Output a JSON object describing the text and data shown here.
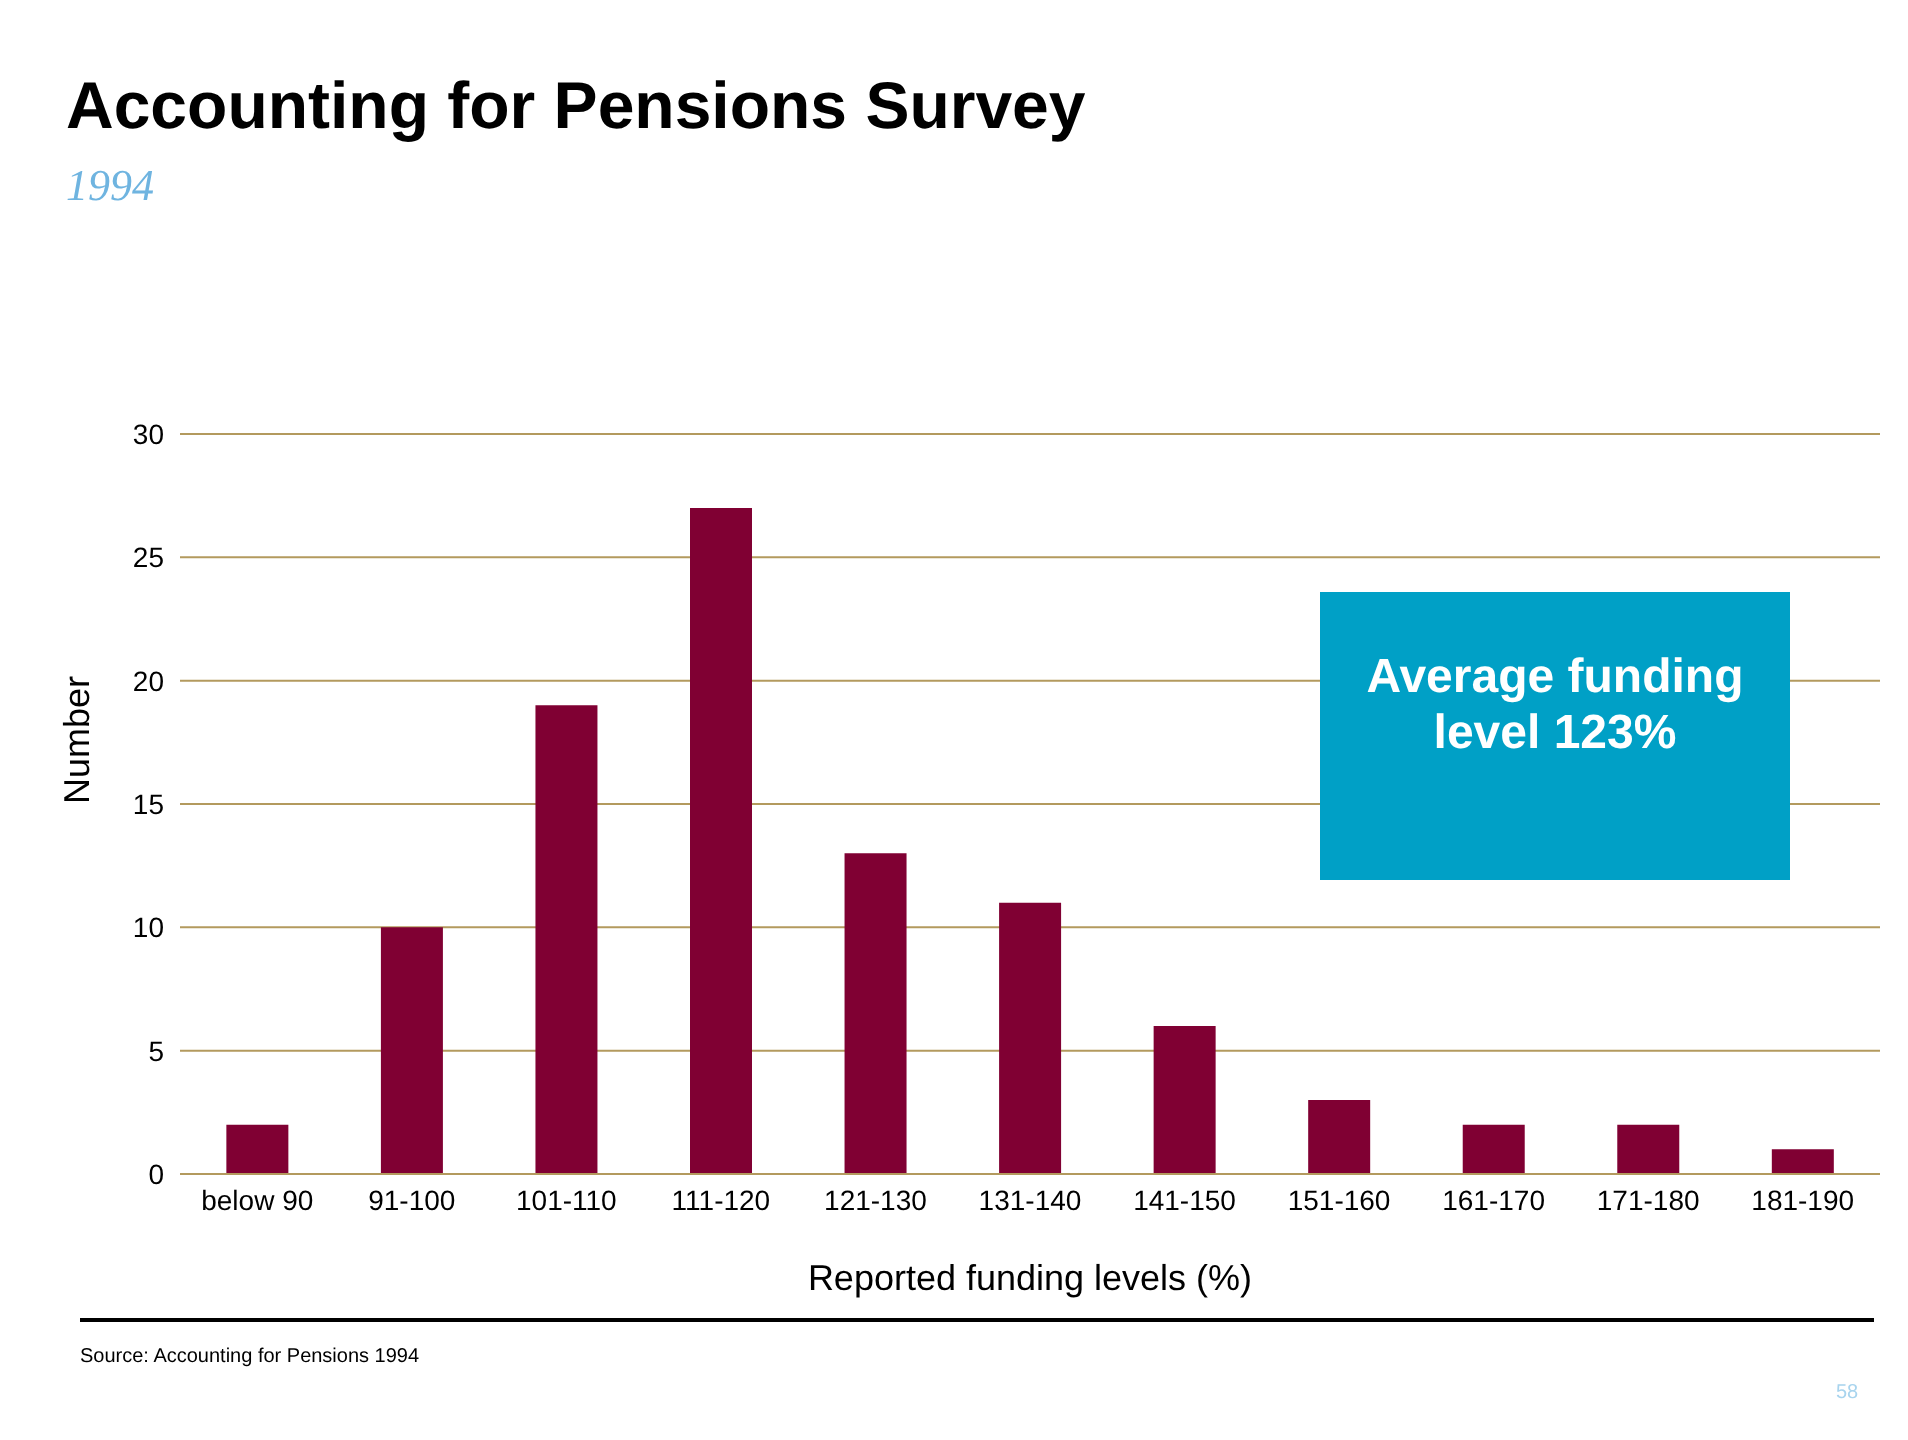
{
  "chart_data": {
    "type": "bar",
    "title": "Accounting for Pensions Survey",
    "subtitle": "1994",
    "xlabel": "Reported funding levels (%)",
    "ylabel": "Number",
    "categories": [
      "below 90",
      "91-100",
      "101-110",
      "111-120",
      "121-130",
      "131-140",
      "141-150",
      "151-160",
      "161-170",
      "171-180",
      "181-190"
    ],
    "values": [
      2,
      10,
      19,
      27,
      13,
      11,
      6,
      3,
      2,
      2,
      1
    ],
    "color": "#800033",
    "ylim": [
      0,
      30
    ],
    "yticks": [
      0,
      5,
      10,
      15,
      20,
      25,
      30
    ],
    "grid": "y",
    "legend": false,
    "annotations": [
      "Average funding level 123%",
      "Source: Accounting for Pensions 1994",
      "58"
    ]
  }
}
